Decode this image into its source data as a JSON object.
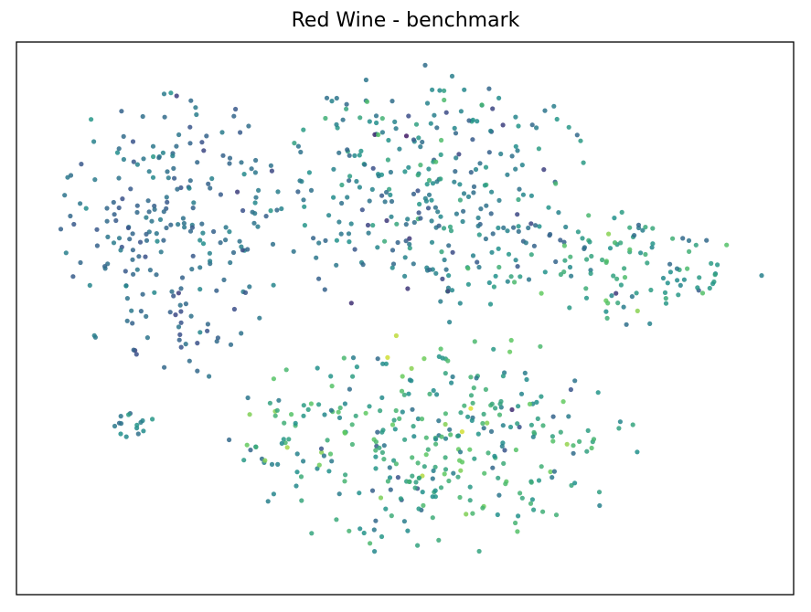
{
  "chart_data": {
    "type": "scatter",
    "title": "Red Wine - benchmark",
    "xlabel": "",
    "ylabel": "",
    "axes_ticks": false,
    "grid": false,
    "colormap": "viridis",
    "colormap_stops": [
      "#440154",
      "#3b528b",
      "#21918c",
      "#5ec962",
      "#fde725"
    ],
    "xlim": [
      0,
      100
    ],
    "ylim": [
      0,
      100
    ],
    "clusters": [
      {
        "name_hint": "left-cluster",
        "x": [
          5,
          35
        ],
        "y": [
          38,
          95
        ],
        "n": 230,
        "c_mean": 0.36,
        "c_sd": 0.07
      },
      {
        "name_hint": "top-middle-cluster",
        "x": [
          32,
          75
        ],
        "y": [
          48,
          96
        ],
        "n": 300,
        "c_mean": 0.42,
        "c_sd": 0.12
      },
      {
        "name_hint": "right-arm",
        "x": [
          60,
          96
        ],
        "y": [
          48,
          70
        ],
        "n": 110,
        "c_mean": 0.55,
        "c_sd": 0.12
      },
      {
        "name_hint": "bottom-middle-cluster",
        "x": [
          27,
          80
        ],
        "y": [
          7,
          48
        ],
        "n": 330,
        "c_mean": 0.58,
        "c_sd": 0.14
      },
      {
        "name_hint": "small-left-group",
        "x": [
          11,
          18
        ],
        "y": [
          28,
          33
        ],
        "n": 15,
        "c_mean": 0.42,
        "c_sd": 0.07
      }
    ]
  }
}
